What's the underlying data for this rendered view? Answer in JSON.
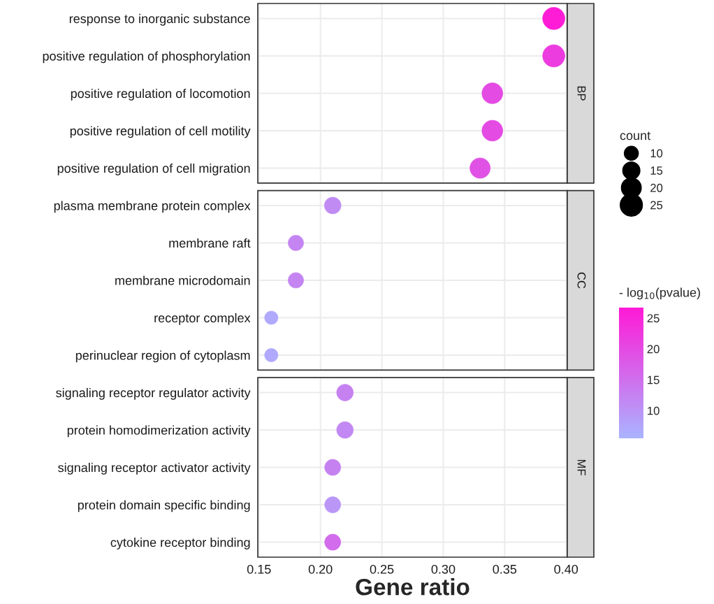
{
  "chart_data": {
    "type": "bubble",
    "orientation": "horizontal",
    "categories": [
      "response to inorganic substance",
      "positive regulation of phosphorylation",
      "positive regulation of locomotion",
      "positive regulation of cell motility",
      "positive regulation of cell migration",
      "plasma membrane protein complex",
      "membrane raft",
      "membrane microdomain",
      "receptor complex",
      "perinuclear region of cytoplasm",
      "signaling receptor regulator activity",
      "protein homodimerization activity",
      "signaling receptor activator activity",
      "protein domain specific binding",
      "cytokine receptor binding"
    ],
    "series": [
      {
        "name": "BP",
        "values": [
          0.39,
          0.39,
          0.34,
          0.34,
          0.33,
          null,
          null,
          null,
          null,
          null,
          null,
          null,
          null,
          null,
          null
        ],
        "sizes": [
          25,
          25,
          22,
          22,
          21,
          null,
          null,
          null,
          null,
          null,
          null,
          null,
          null,
          null,
          null
        ],
        "cvalues": [
          26.5,
          22,
          20,
          20,
          19,
          null,
          null,
          null,
          null,
          null,
          null,
          null,
          null,
          null,
          null
        ],
        "colors": [
          "#fe1cd6",
          "#ec3cdf",
          "#e44be3",
          "#e44be3",
          "#e052e5",
          null,
          null,
          null,
          null,
          null,
          null,
          null,
          null,
          null,
          null
        ]
      },
      {
        "name": "CC",
        "values": [
          null,
          null,
          null,
          null,
          null,
          0.21,
          0.18,
          0.18,
          0.16,
          0.16,
          null,
          null,
          null,
          null,
          null
        ],
        "sizes": [
          null,
          null,
          null,
          null,
          null,
          14,
          12,
          12,
          9,
          9,
          null,
          null,
          null,
          null,
          null
        ],
        "cvalues": [
          null,
          null,
          null,
          null,
          null,
          11,
          12,
          12,
          7,
          7,
          null,
          null,
          null,
          null,
          null
        ],
        "colors": [
          null,
          null,
          null,
          null,
          null,
          "#c08cf4",
          "#c485f2",
          "#c485f2",
          "#b0a9fc",
          "#b0a9fc",
          null,
          null,
          null,
          null,
          null
        ]
      },
      {
        "name": "MF",
        "values": [
          null,
          null,
          null,
          null,
          null,
          null,
          null,
          null,
          null,
          null,
          0.22,
          0.22,
          0.21,
          0.21,
          0.21
        ],
        "sizes": [
          null,
          null,
          null,
          null,
          null,
          null,
          null,
          null,
          null,
          null,
          14,
          14,
          13,
          13,
          13
        ],
        "cvalues": [
          null,
          null,
          null,
          null,
          null,
          null,
          null,
          null,
          null,
          null,
          12.5,
          11.5,
          12.5,
          9.5,
          15.5
        ],
        "colors": [
          null,
          null,
          null,
          null,
          null,
          null,
          null,
          null,
          null,
          null,
          "#c681f1",
          "#c288f3",
          "#c681f1",
          "#ba97f7",
          "#d26bec"
        ]
      }
    ],
    "xlim": [
      0.149,
      0.401
    ],
    "xticks": [
      0.15,
      {
        "value": 0.2,
        "label": "0.20"
      },
      0.25,
      {
        "value": 0.3,
        "label": "0.30"
      },
      0.35,
      {
        "value": 0.4,
        "label": "0.40"
      }
    ],
    "grid": true,
    "xlabel": "Gene ratio",
    "clim": [
      5.5,
      26.7
    ],
    "cticks": [
      10,
      15,
      20,
      25
    ],
    "clabel": "- log$_{10}$(pvalue)",
    "size_legend": [
      10,
      15,
      20,
      25
    ],
    "legend_title": "count"
  }
}
